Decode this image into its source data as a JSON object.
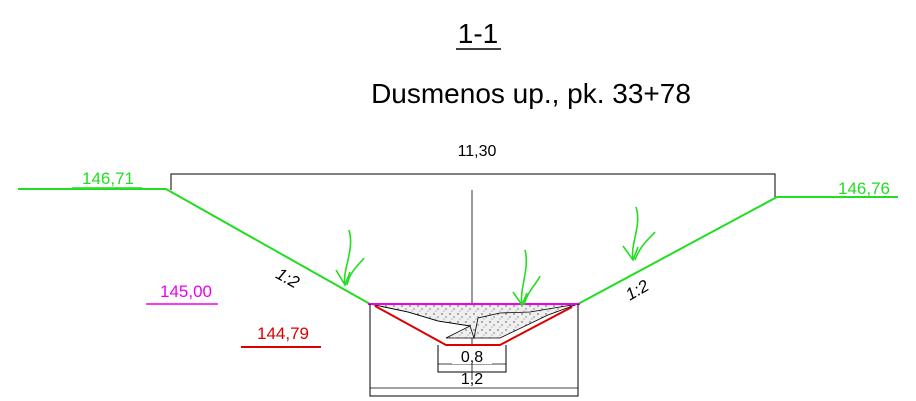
{
  "section": {
    "label": "1-1",
    "subtitle": "Dusmenos up., pk. 33+78"
  },
  "dimensions": {
    "top_width": "11,30",
    "bottom_inner": "0,8",
    "bottom_outer": "1,2"
  },
  "elevations": {
    "left_bank": "146,71",
    "right_bank": "146,76",
    "water_level": "145,00",
    "bed_level": "144,79"
  },
  "slopes": {
    "left": "1:2",
    "right": "1:2"
  },
  "colors": {
    "ground": "#22dd22",
    "water": "#ee00ee",
    "bed": "#dd0000",
    "lines": "#000000",
    "bed_fill": "#e6e6e6"
  }
}
